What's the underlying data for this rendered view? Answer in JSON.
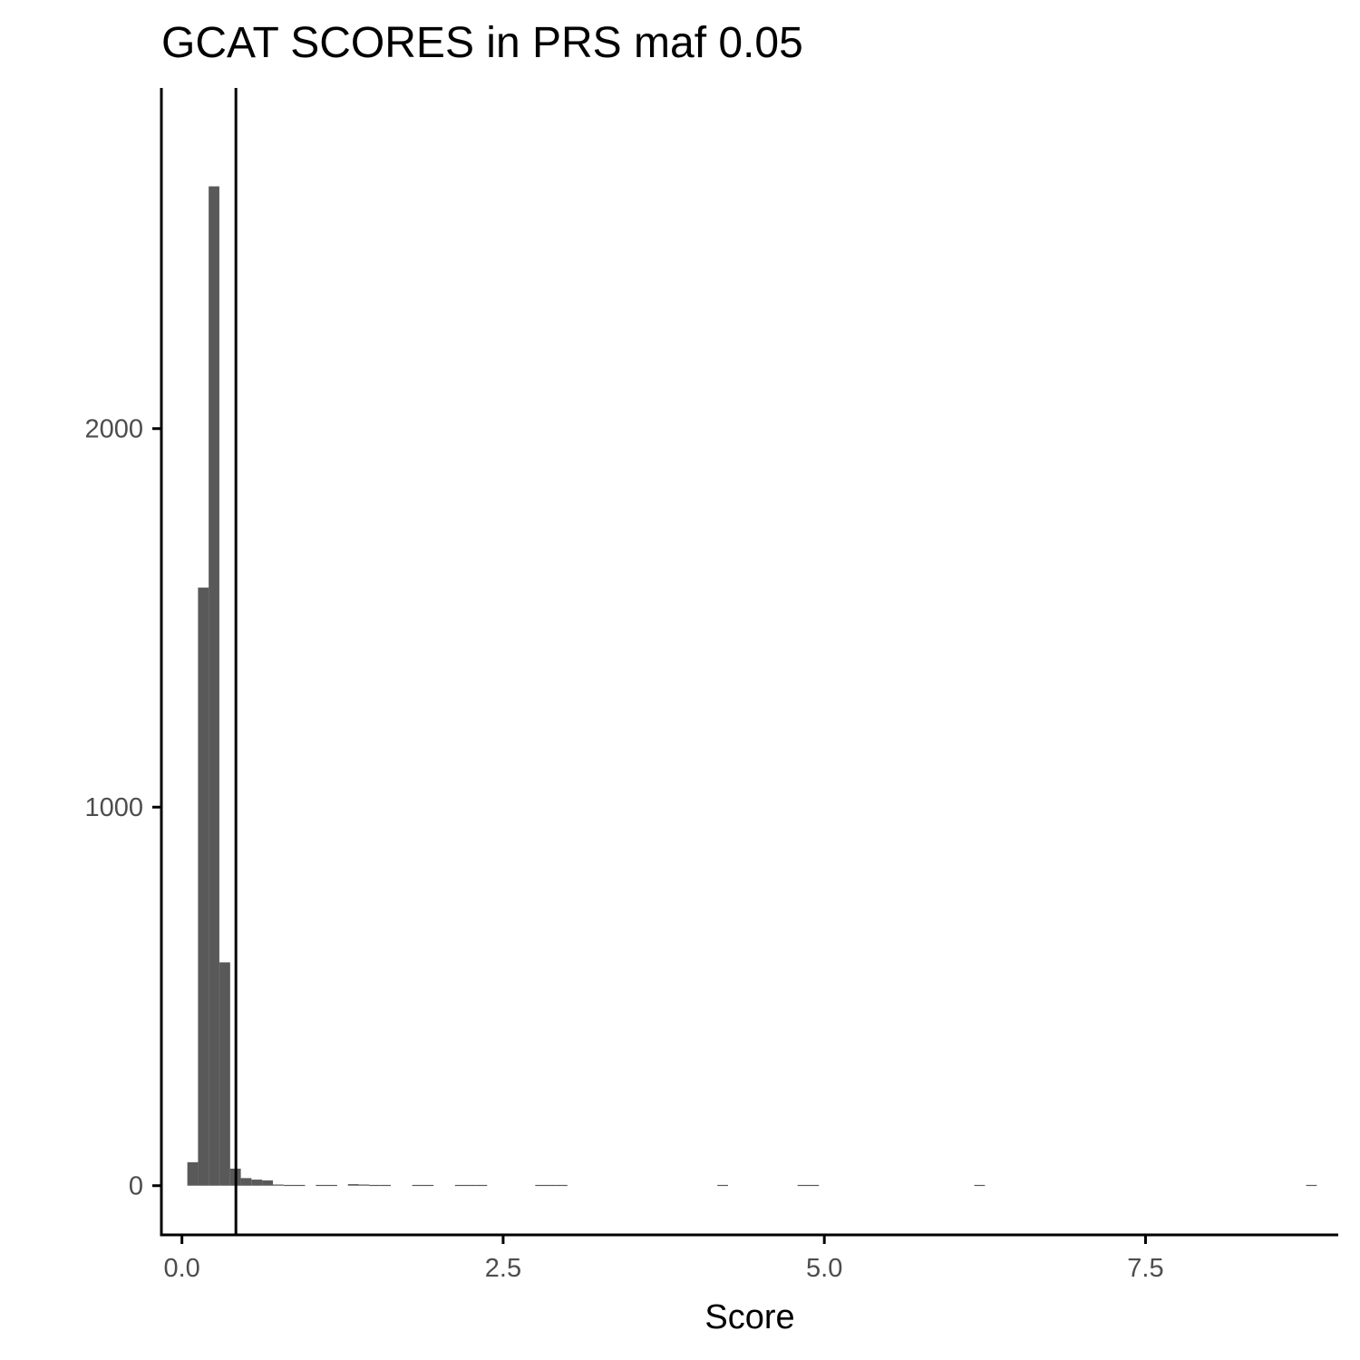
{
  "chart_data": {
    "type": "bar",
    "title": "GCAT SCORES in PRS maf 0.05",
    "xlabel": "Score",
    "ylabel": "",
    "xlim": [
      -0.16,
      9.0
    ],
    "ylim": [
      -130,
      2900
    ],
    "x_ticks": [
      {
        "value": 0.0,
        "label": "0.0"
      },
      {
        "value": 2.5,
        "label": "2.5"
      },
      {
        "value": 5.0,
        "label": "5.0"
      },
      {
        "value": 7.5,
        "label": "7.5"
      }
    ],
    "y_ticks": [
      {
        "value": 0,
        "label": "0"
      },
      {
        "value": 1000,
        "label": "1000"
      },
      {
        "value": 2000,
        "label": "2000"
      }
    ],
    "bin_width": 0.0833,
    "bins": [
      {
        "x0": 0.042,
        "count": 62
      },
      {
        "x0": 0.125,
        "count": 1580
      },
      {
        "x0": 0.208,
        "count": 2640
      },
      {
        "x0": 0.292,
        "count": 590
      },
      {
        "x0": 0.375,
        "count": 45
      },
      {
        "x0": 0.458,
        "count": 20
      },
      {
        "x0": 0.542,
        "count": 16
      },
      {
        "x0": 0.625,
        "count": 14
      },
      {
        "x0": 0.708,
        "count": 3
      },
      {
        "x0": 0.792,
        "count": 2
      },
      {
        "x0": 0.875,
        "count": 2
      },
      {
        "x0": 1.042,
        "count": 2
      },
      {
        "x0": 1.125,
        "count": 2
      },
      {
        "x0": 1.292,
        "count": 4
      },
      {
        "x0": 1.375,
        "count": 3
      },
      {
        "x0": 1.458,
        "count": 2
      },
      {
        "x0": 1.542,
        "count": 2
      },
      {
        "x0": 1.792,
        "count": 2
      },
      {
        "x0": 1.875,
        "count": 2
      },
      {
        "x0": 2.125,
        "count": 2
      },
      {
        "x0": 2.208,
        "count": 2
      },
      {
        "x0": 2.292,
        "count": 2
      },
      {
        "x0": 2.75,
        "count": 2
      },
      {
        "x0": 2.833,
        "count": 2
      },
      {
        "x0": 2.917,
        "count": 2
      },
      {
        "x0": 4.167,
        "count": 2
      },
      {
        "x0": 4.792,
        "count": 2
      },
      {
        "x0": 4.875,
        "count": 2
      },
      {
        "x0": 6.167,
        "count": 2
      },
      {
        "x0": 8.75,
        "count": 2
      }
    ],
    "vline": {
      "x": 0.42
    }
  },
  "colors": {
    "bar_fill": "#595959",
    "axis": "#000000",
    "vline": "#000000"
  }
}
